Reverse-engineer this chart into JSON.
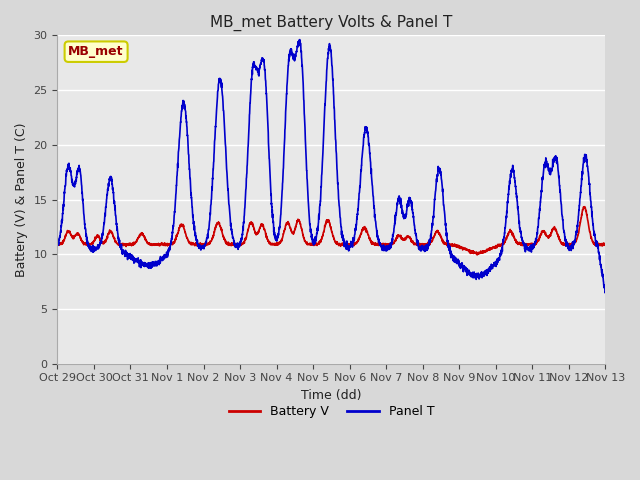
{
  "title": "MB_met Battery Volts & Panel T",
  "xlabel": "Time (dd)",
  "ylabel": "Battery (V) & Panel T (C)",
  "annotation": "MB_met",
  "ylim": [
    0,
    30
  ],
  "yticks": [
    0,
    5,
    10,
    15,
    20,
    25,
    30
  ],
  "fig_facecolor": "#d8d8d8",
  "plot_bg_color": "#e8e8e8",
  "battery_color": "#cc0000",
  "panel_color": "#0000cc",
  "legend_battery": "Battery V",
  "legend_panel": "Panel T",
  "x_tick_labels": [
    "Oct 29",
    "Oct 30",
    "Oct 31",
    "Nov 1",
    "Nov 2",
    "Nov 3",
    "Nov 4",
    "Nov 5",
    "Nov 6",
    "Nov 7",
    "Nov 8",
    "Nov 9",
    "Nov 10",
    "Nov 11",
    "Nov 12",
    "Nov 13"
  ],
  "x_tick_positions": [
    0,
    1,
    2,
    3,
    4,
    5,
    6,
    7,
    8,
    9,
    10,
    11,
    12,
    13,
    14,
    15
  ],
  "annotation_bg": "#ffffcc",
  "annotation_border": "#cccc00",
  "grid_color": "#ffffff",
  "linewidth": 1.2
}
